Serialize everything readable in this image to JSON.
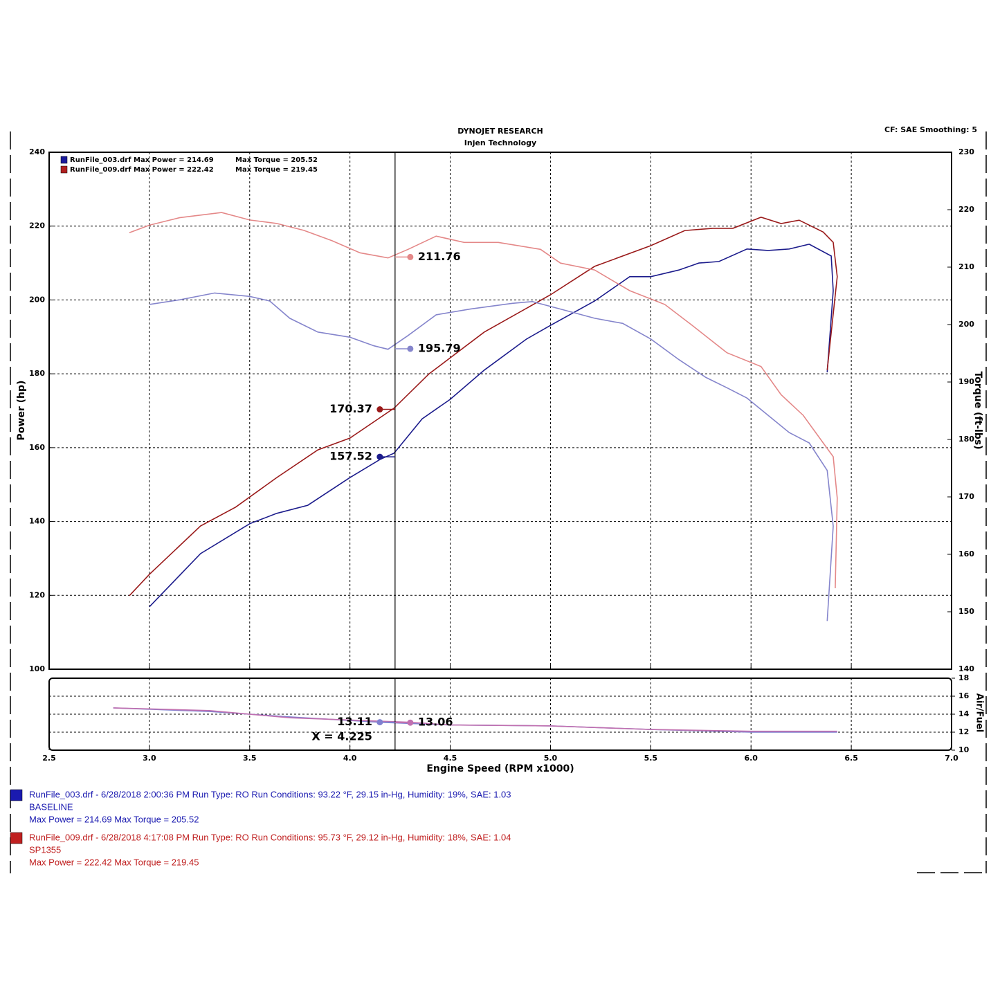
{
  "header": {
    "title": "DYNOJET RESEARCH",
    "subtitle": "Injen Technology",
    "settings": "CF: SAE  Smoothing: 5"
  },
  "chart_data": [
    {
      "type": "line",
      "ylabel": "Power (hp)",
      "y2label": "Torque (ft-lbs)",
      "xlim": [
        2.5,
        7
      ],
      "xticks": [
        2.5,
        3,
        3.5,
        4,
        4.5,
        5,
        5.5,
        6,
        6.5,
        7
      ],
      "ylim": [
        100,
        240
      ],
      "yticks": [
        100,
        120,
        140,
        160,
        180,
        200,
        220,
        240
      ],
      "y2lim": [
        140,
        230
      ],
      "y2ticks": [
        140,
        150,
        160,
        170,
        180,
        190,
        200,
        210,
        220,
        230
      ],
      "grid": true,
      "cursor_x": 4.225,
      "legend": [
        {
          "color": "#1c1c9c",
          "power": "RunFile_003.drf Max Power = 214.69",
          "torque": "Max Torque = 205.52"
        },
        {
          "color": "#b02020",
          "power": "RunFile_009.drf Max Power = 222.42",
          "torque": "Max Torque = 219.45"
        }
      ],
      "series": [
        {
          "color": "#1c1c8c",
          "cursor_value": 157.52,
          "x": [
            3.0,
            3.255,
            3.5,
            3.635,
            3.79,
            4.0,
            4.15,
            4.22,
            4.36,
            4.5,
            4.67,
            4.88,
            5.0,
            5.22,
            5.395,
            5.5,
            5.64,
            5.74,
            5.84,
            5.98,
            6.085,
            6.19,
            6.29,
            6.4,
            6.41,
            6.38
          ],
          "values": [
            116.9,
            131.3,
            139.4,
            142.2,
            144.4,
            151.9,
            156.8,
            158.5,
            167.8,
            173.1,
            181.0,
            189.4,
            193.1,
            199.7,
            206.3,
            206.3,
            208.1,
            210.0,
            210.4,
            213.8,
            213.4,
            213.8,
            215.1,
            211.9,
            202.5,
            180.4
          ]
        },
        {
          "color": "#9a1a1a",
          "cursor_value": 170.37,
          "x": [
            2.9,
            3.0,
            3.255,
            3.43,
            3.635,
            3.84,
            4.0,
            4.22,
            4.395,
            4.67,
            5.0,
            5.22,
            5.5,
            5.67,
            5.81,
            5.91,
            6.05,
            6.15,
            6.24,
            6.36,
            6.41,
            6.43,
            6.38
          ],
          "values": [
            119.9,
            125.7,
            138.8,
            143.9,
            151.9,
            159.4,
            162.6,
            170.7,
            180.0,
            191.3,
            201.4,
            209.1,
            214.7,
            218.8,
            219.4,
            219.4,
            222.4,
            220.7,
            221.6,
            218.4,
            215.6,
            206.3,
            181.0
          ]
        },
        {
          "color": "#8585cc",
          "axis": "y2",
          "cursor_value": 195.79,
          "x": [
            3.0,
            3.15,
            3.325,
            3.5,
            3.6,
            3.7,
            3.84,
            4.0,
            4.12,
            4.19,
            4.29,
            4.43,
            4.6,
            4.81,
            4.91,
            5.05,
            5.22,
            5.36,
            5.5,
            5.64,
            5.775,
            5.88,
            5.98,
            6.085,
            6.19,
            6.29,
            6.38,
            6.41,
            6.38
          ],
          "values": [
            203.5,
            204.3,
            205.5,
            204.9,
            204.1,
            201.1,
            198.7,
            197.8,
            196.3,
            195.7,
            198.1,
            201.7,
            202.7,
            203.7,
            204.0,
            202.7,
            201.1,
            200.2,
            197.5,
            193.9,
            190.8,
            189.0,
            187.2,
            184.2,
            181.2,
            179.4,
            174.6,
            164.9,
            148.4
          ]
        },
        {
          "color": "#e48888",
          "axis": "y2",
          "cursor_value": 211.76,
          "x": [
            2.9,
            3.0,
            3.15,
            3.36,
            3.5,
            3.635,
            3.77,
            3.91,
            4.05,
            4.19,
            4.29,
            4.43,
            4.57,
            4.74,
            4.95,
            5.05,
            5.22,
            5.395,
            5.57,
            5.705,
            5.88,
            6.05,
            6.15,
            6.26,
            6.36,
            6.41,
            6.43,
            6.42
          ],
          "values": [
            216.0,
            217.3,
            218.6,
            219.5,
            218.2,
            217.6,
            216.4,
            214.6,
            212.5,
            211.6,
            213.1,
            215.4,
            214.3,
            214.3,
            213.1,
            210.7,
            209.5,
            205.9,
            203.5,
            199.9,
            195.1,
            192.7,
            187.8,
            184.2,
            179.4,
            177.0,
            169.8,
            154.1
          ]
        }
      ]
    },
    {
      "type": "line",
      "xlabel": "Engine Speed (RPM x1000)",
      "ylabel": "Air/Fuel",
      "xlim": [
        2.5,
        7
      ],
      "xticks": [
        {
          "value": 2.5,
          "label": "2.5"
        },
        {
          "value": 3,
          "label": "3.0"
        },
        {
          "value": 3.5,
          "label": "3.5"
        },
        {
          "value": 4,
          "label": "4.0"
        },
        {
          "value": 4.5,
          "label": "4.5"
        },
        {
          "value": 5,
          "label": "5.0"
        },
        {
          "value": 5.5,
          "label": "5.5"
        },
        {
          "value": 6,
          "label": "6.0"
        },
        {
          "value": 6.5,
          "label": "6.5"
        },
        {
          "value": 7,
          "label": "7.0"
        }
      ],
      "ylim": [
        10,
        18
      ],
      "yticks": [
        10,
        12,
        14,
        16,
        18
      ],
      "grid": true,
      "cursor_x": 4.225,
      "cursor_label": "X = 4.225",
      "series": [
        {
          "color": "#8080d0",
          "cursor_value": 13.11,
          "x": [
            2.82,
            3.3,
            3.7,
            4.15,
            4.5,
            5.0,
            5.5,
            6.0,
            6.43
          ],
          "values": [
            14.7,
            14.3,
            13.7,
            13.1,
            12.8,
            12.7,
            12.3,
            12.0,
            12.0
          ]
        },
        {
          "color": "#c070b0",
          "cursor_value": 13.06,
          "x": [
            2.82,
            3.3,
            3.7,
            4.3,
            4.5,
            5.0,
            5.5,
            6.0,
            6.43
          ],
          "values": [
            14.7,
            14.4,
            13.6,
            13.1,
            12.8,
            12.7,
            12.3,
            12.1,
            12.1
          ]
        }
      ]
    }
  ],
  "run_legend": [
    {
      "color": "#1a1ab0",
      "line1": "RunFile_003.drf - 6/28/2018 2:00:36 PM  Run Type: RO  Run Conditions: 93.22 °F, 29.15 in-Hg,  Humidity:  19%, SAE: 1.03",
      "line2": "BASELINE",
      "line3": "Max Power = 214.69  Max Torque = 205.52"
    },
    {
      "color": "#c02020",
      "line1": "RunFile_009.drf - 6/28/2018 4:17:08 PM  Run Type: RO  Run Conditions: 95.73 °F, 29.12 in-Hg,  Humidity:  18%, SAE: 1.04",
      "line2": "SP1355",
      "line3": "Max Power = 222.42  Max Torque = 219.45"
    }
  ]
}
